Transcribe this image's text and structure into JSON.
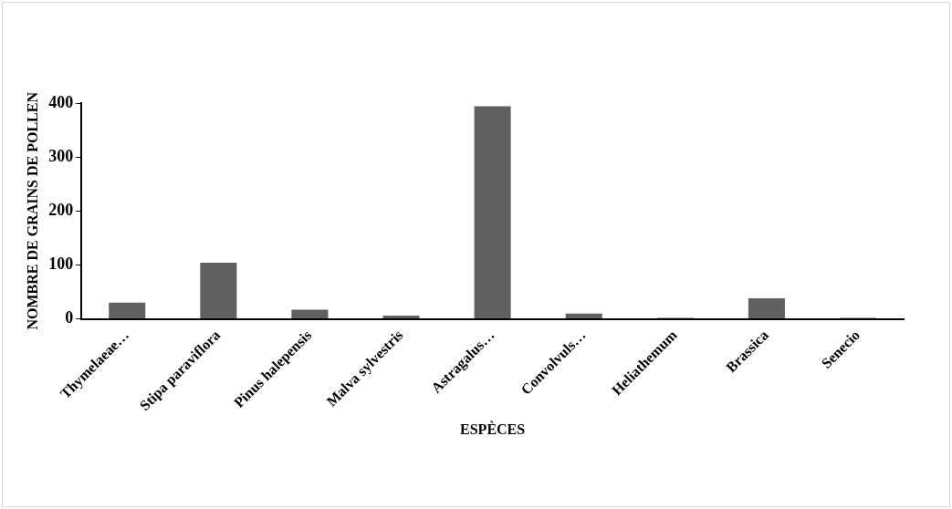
{
  "chart_data": {
    "type": "bar",
    "xlabel": "ESPÈCES",
    "ylabel": "NOMBRE DE GRAINS DE POLLEN",
    "categories": [
      "Thymelaeae…",
      "Stipa paraviflora",
      "Pinus halepensis",
      "Malva sylvestris",
      "Astragalus…",
      "Convolvuls…",
      "Heliathemum",
      "Brassica",
      "Senecio"
    ],
    "values": [
      30,
      104,
      17,
      6,
      394,
      10,
      2,
      38,
      2
    ],
    "color": "#606060",
    "ylim": [
      0,
      400
    ],
    "yticks": [
      0,
      100,
      200,
      300,
      400
    ],
    "grid": false,
    "legend": false
  }
}
